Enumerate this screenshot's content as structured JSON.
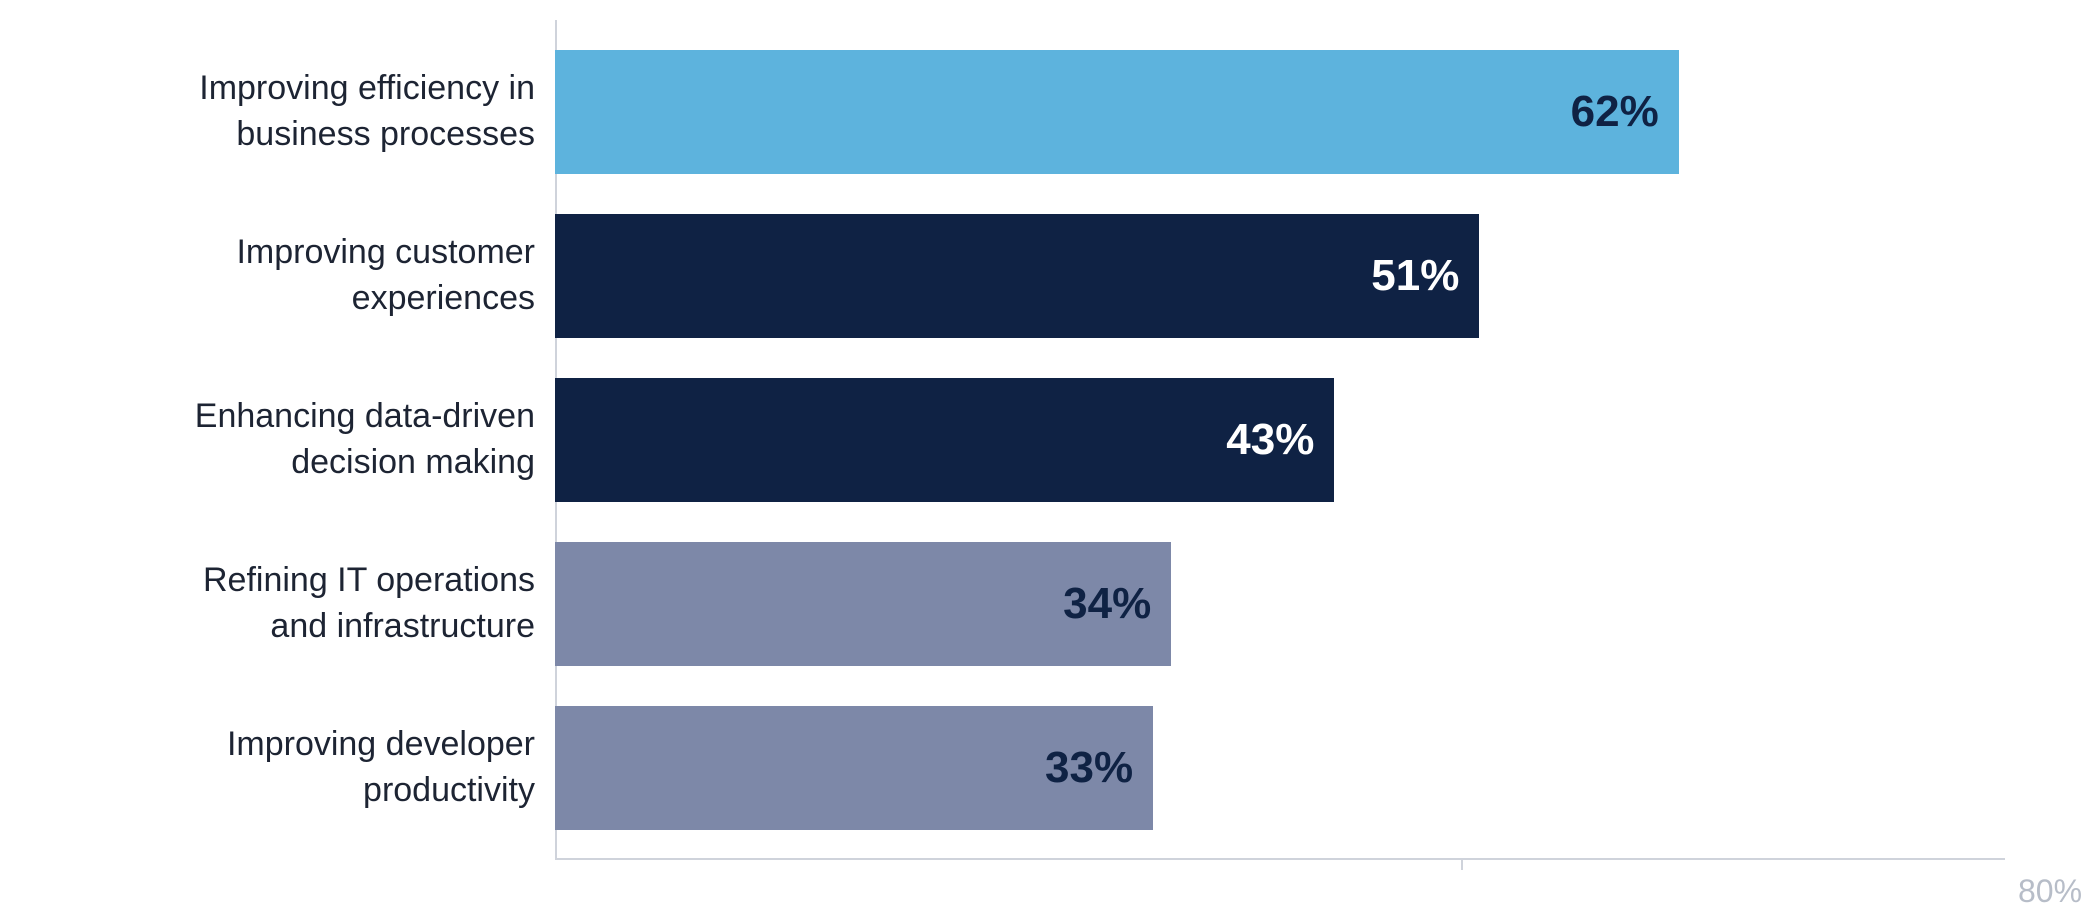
{
  "chart": {
    "type": "bar",
    "orientation": "horizontal",
    "background_color": "#ffffff",
    "axis_color": "#cfd3db",
    "label_color": "#1d2433",
    "tick_label_color": "#b7bdc8",
    "label_fontsize": 34,
    "value_fontsize": 44,
    "tick_fontsize": 32,
    "xlim": [
      0,
      80
    ],
    "x_axis_end_pct": 80,
    "x_tick_at": 50,
    "x_end_label": "80%",
    "bars": [
      {
        "label_line1": "Improving efficiency in",
        "label_line2": "business processes",
        "value": 62,
        "value_label": "62%",
        "color": "#5db3dd",
        "value_text_color": "#0f2244"
      },
      {
        "label_line1": "Improving customer",
        "label_line2": "experiences",
        "value": 51,
        "value_label": "51%",
        "color": "#0f2244",
        "value_text_color": "#ffffff"
      },
      {
        "label_line1": "Enhancing data-driven",
        "label_line2": "decision making",
        "value": 43,
        "value_label": "43%",
        "color": "#0f2244",
        "value_text_color": "#ffffff"
      },
      {
        "label_line1": "Refining IT operations",
        "label_line2": "and infrastructure",
        "value": 34,
        "value_label": "34%",
        "color": "#7d88a8",
        "value_text_color": "#0f2244"
      },
      {
        "label_line1": "Improving developer",
        "label_line2": "productivity",
        "value": 33,
        "value_label": "33%",
        "color": "#7d88a8",
        "value_text_color": "#0f2244"
      }
    ]
  }
}
